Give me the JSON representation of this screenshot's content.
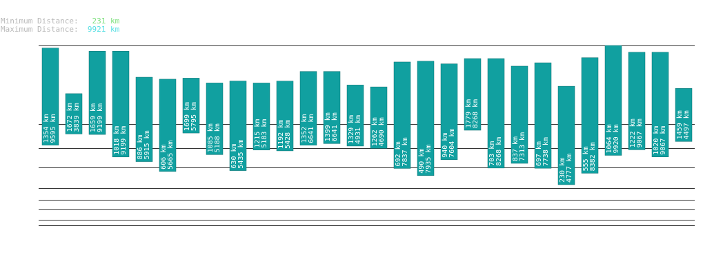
{
  "summary": {
    "min_label": "Minimum Distance:",
    "min_value": "231 km",
    "max_label": "Maximum Distance:",
    "max_value": "9921 km",
    "min_color": "#7fe07f",
    "max_color": "#55dfe3",
    "label_color": "#b8b8b8"
  },
  "chart_data": {
    "type": "bar",
    "bar_color": "#11a0a0",
    "unit": "km",
    "grid": true,
    "bars": [
      {
        "lower": 1354,
        "upper": 9595
      },
      {
        "lower": 1672,
        "upper": 3839
      },
      {
        "lower": 1659,
        "upper": 9199
      },
      {
        "lower": 1018,
        "upper": 9199
      },
      {
        "lower": 886,
        "upper": 5915
      },
      {
        "lower": 606,
        "upper": 5665
      },
      {
        "lower": 1699,
        "upper": 5795
      },
      {
        "lower": 1085,
        "upper": 5188
      },
      {
        "lower": 630,
        "upper": 5435
      },
      {
        "lower": 1215,
        "upper": 5183
      },
      {
        "lower": 1192,
        "upper": 5428
      },
      {
        "lower": 1352,
        "upper": 6641
      },
      {
        "lower": 1399,
        "upper": 6641
      },
      {
        "lower": 1329,
        "upper": 4931
      },
      {
        "lower": 1262,
        "upper": 4690
      },
      {
        "lower": 692,
        "upper": 7837
      },
      {
        "lower": 490,
        "upper": 7935
      },
      {
        "lower": 940,
        "upper": 7604
      },
      {
        "lower": 1779,
        "upper": 8268
      },
      {
        "lower": 703,
        "upper": 8268
      },
      {
        "lower": 837,
        "upper": 7313
      },
      {
        "lower": 697,
        "upper": 7738
      },
      {
        "lower": 230,
        "upper": 4777
      },
      {
        "lower": 555,
        "upper": 8382
      },
      {
        "lower": 1064,
        "upper": 9920
      },
      {
        "lower": 1222,
        "upper": 9067
      },
      {
        "lower": 1020,
        "upper": 9067
      },
      {
        "lower": 1459,
        "upper": 4497
      }
    ]
  }
}
